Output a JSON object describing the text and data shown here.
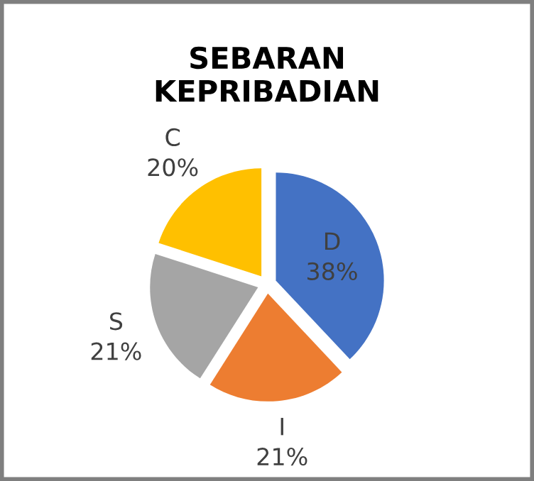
{
  "chart_data": {
    "type": "pie",
    "title": "SEBARAN\nKEPRIBADIAN",
    "categories": [
      "D",
      "I",
      "S",
      "C"
    ],
    "values": [
      38,
      21,
      21,
      20
    ],
    "value_labels": [
      "38%",
      "21%",
      "21%",
      "20%"
    ],
    "colors": [
      "#4472c4",
      "#ed7d31",
      "#a5a5a5",
      "#ffc000"
    ]
  }
}
